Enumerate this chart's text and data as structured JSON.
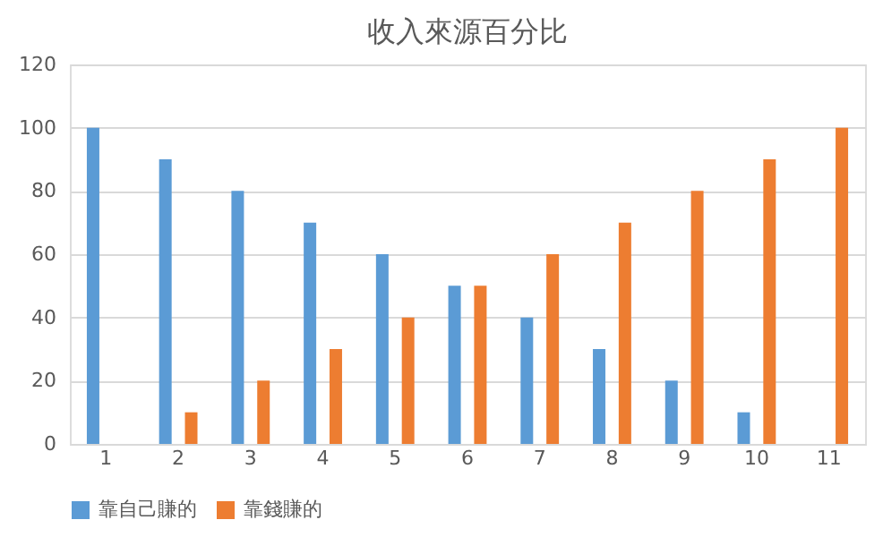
{
  "chart_data": {
    "type": "bar",
    "title": "收入來源百分比",
    "categories": [
      "1",
      "2",
      "3",
      "4",
      "5",
      "6",
      "7",
      "8",
      "9",
      "10",
      "11"
    ],
    "series": [
      {
        "name": "靠自己賺的",
        "color": "#5b9bd5",
        "values": [
          100,
          90,
          80,
          70,
          60,
          50,
          40,
          30,
          20,
          10,
          0
        ]
      },
      {
        "name": "靠錢賺的",
        "color": "#ed7d31",
        "values": [
          0,
          10,
          20,
          30,
          40,
          50,
          60,
          70,
          80,
          90,
          100
        ]
      }
    ],
    "ylim": [
      0,
      120
    ],
    "yticks": [
      0,
      20,
      40,
      60,
      80,
      100,
      120
    ],
    "grid": "y",
    "legend": "bottom"
  }
}
